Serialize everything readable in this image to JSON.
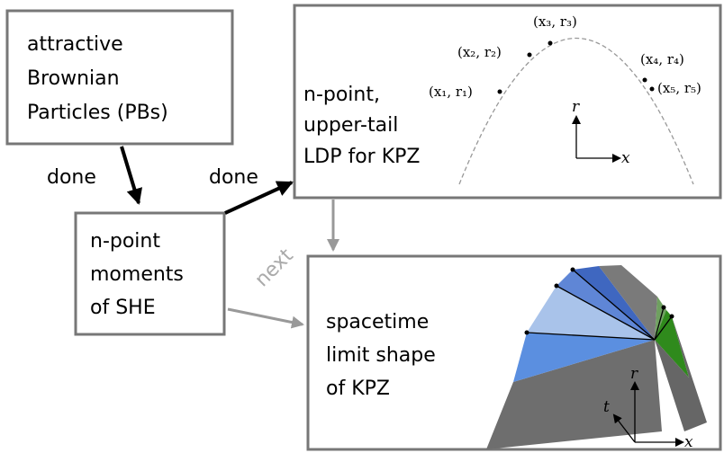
{
  "nodes": [
    {
      "lines": [
        "attractive",
        "Brownian",
        "Particles (PBs)"
      ]
    },
    {
      "lines": [
        "n-point",
        "moments",
        "of SHE"
      ]
    },
    {
      "lines": [
        "n-point,",
        "upper-tail",
        "LDP for KPZ"
      ]
    },
    {
      "lines": [
        "spacetime",
        "limit shape",
        "of KPZ"
      ]
    }
  ],
  "edges": [
    {
      "label": "done"
    },
    {
      "label": "done"
    },
    {
      "label": "next"
    }
  ],
  "ldp_points": [
    "(x₁, r₁)",
    "(x₂, r₂)",
    "(x₃, r₃)",
    "(x₄, r₄)",
    "(x₅, r₅)"
  ],
  "ldp_axes": {
    "vertical": "r",
    "horizontal": "x"
  },
  "shape_axes": {
    "vertical": "r",
    "horizontal": "x",
    "depth": "t"
  }
}
